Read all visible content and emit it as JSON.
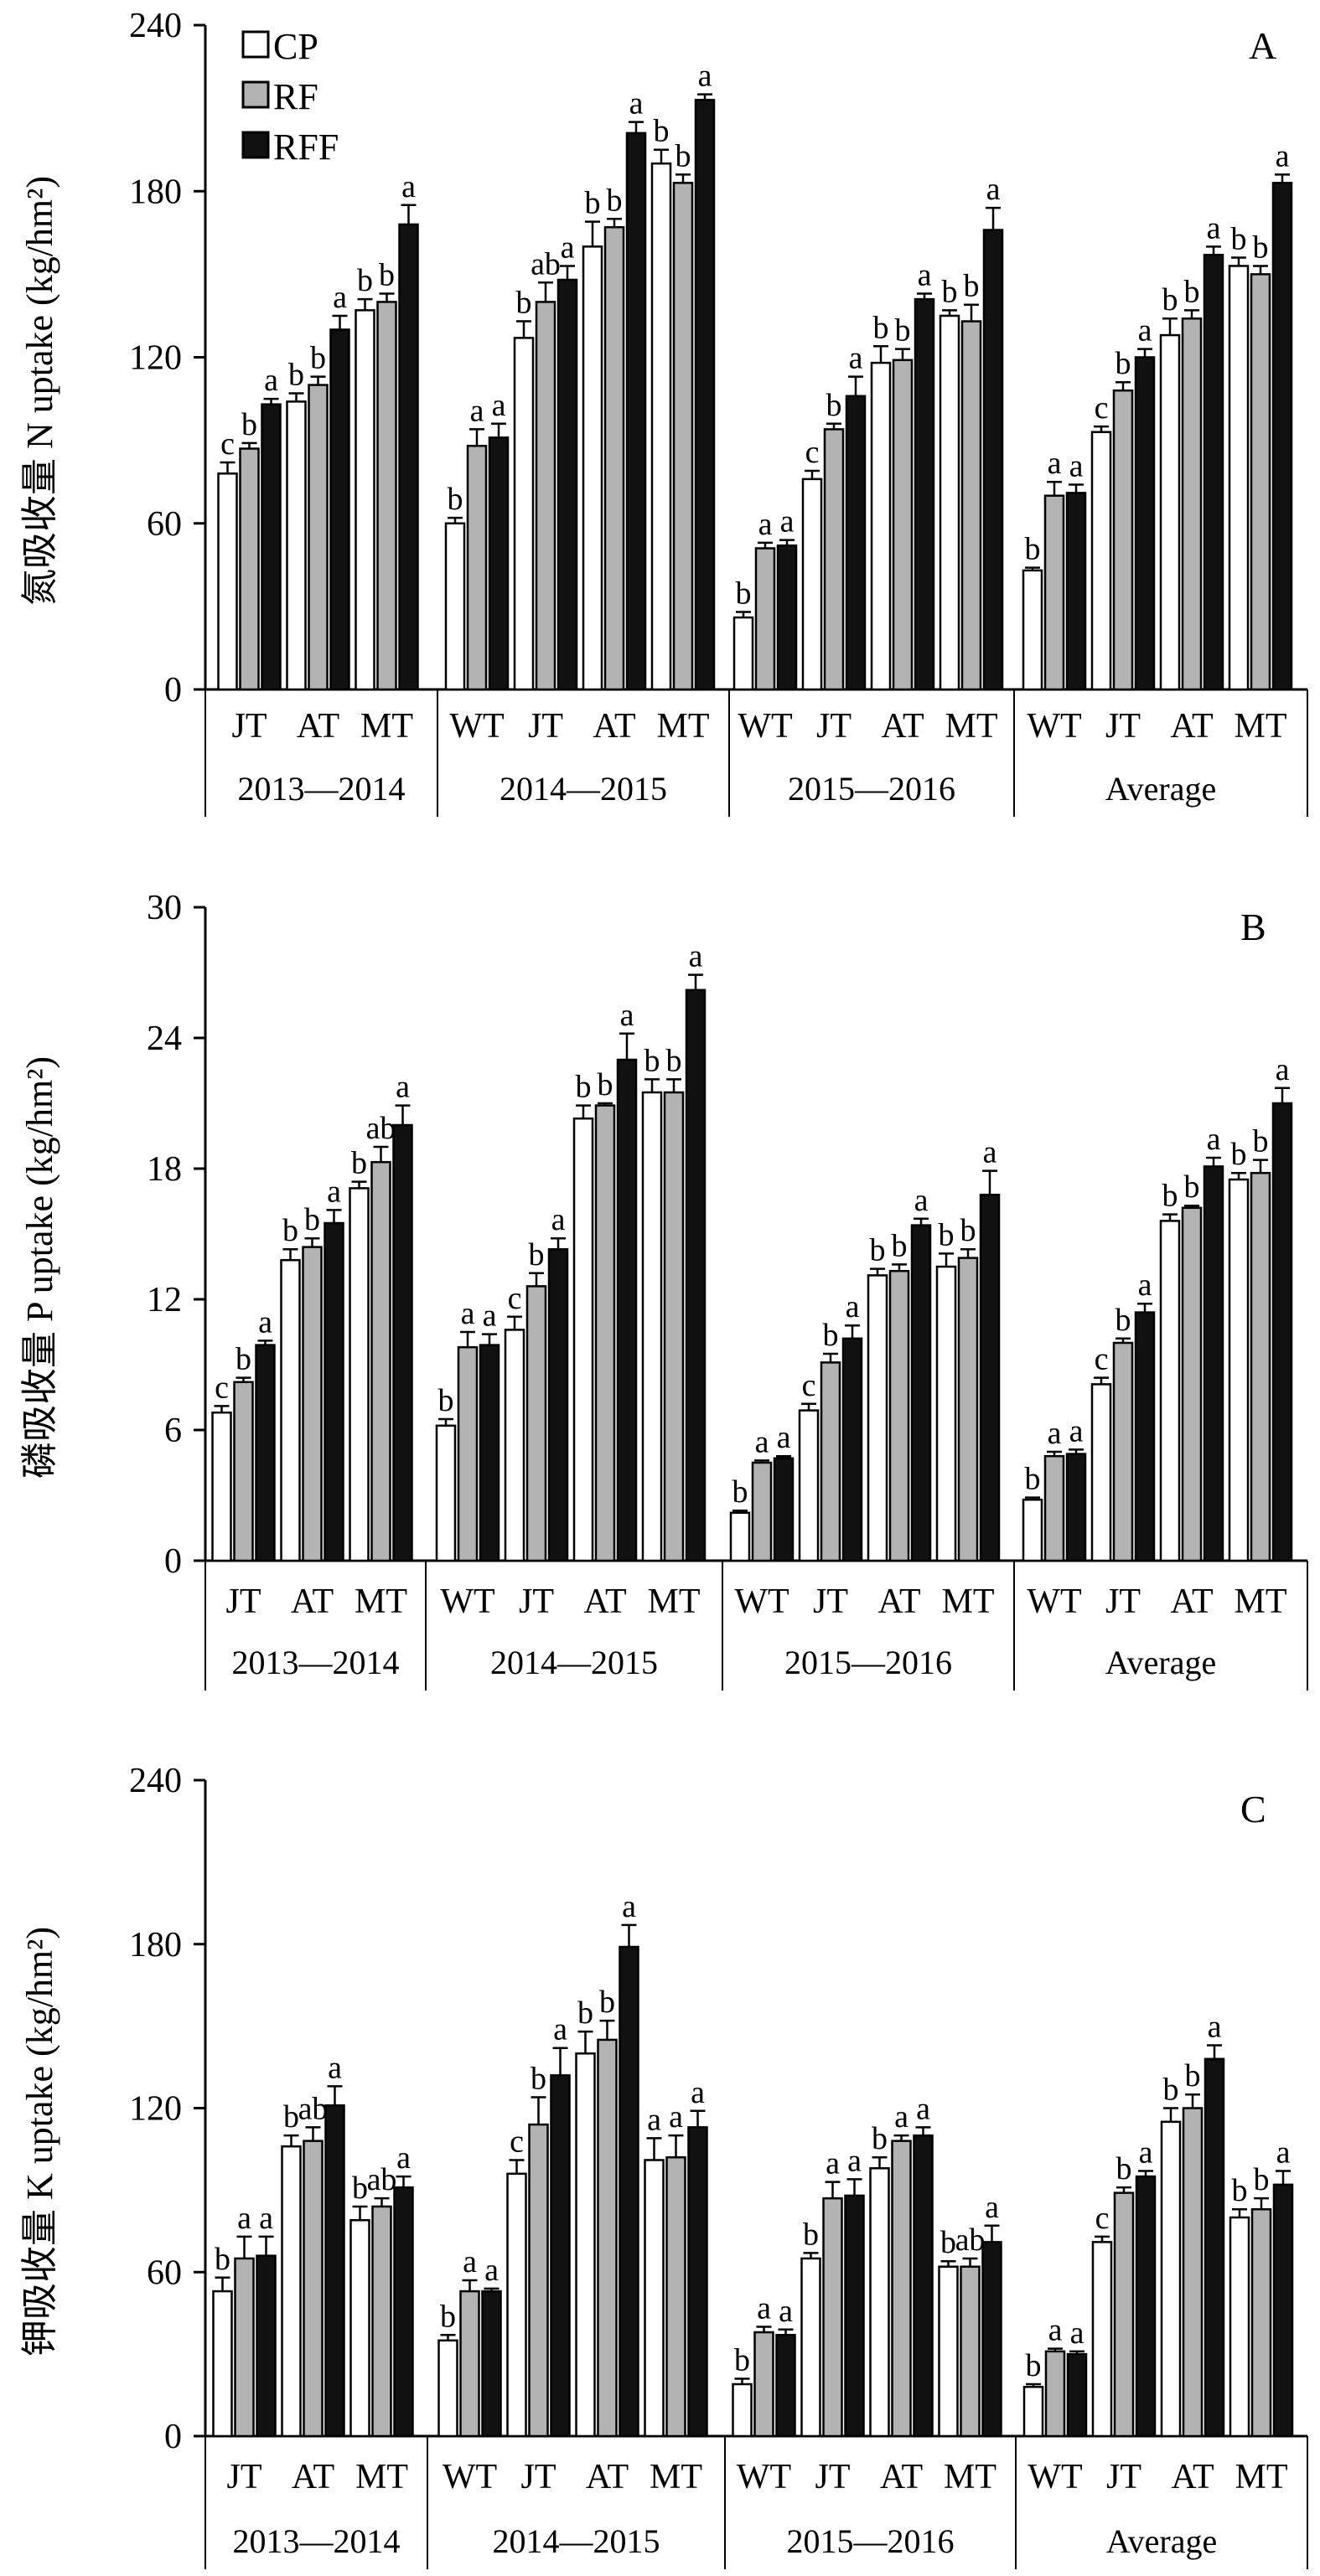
{
  "legend": [
    {
      "key": "CP",
      "label": "CP",
      "color": "#ffffff"
    },
    {
      "key": "RF",
      "label": "RF",
      "color": "#b3b3b3"
    },
    {
      "key": "RFF",
      "label": "RFF",
      "color": "#111111"
    }
  ],
  "chart_data": [
    {
      "id": "N",
      "type": "bar",
      "panel_label": "A",
      "ylabel": "氮吸收量 N uptake (kg/hm²)",
      "ylim": [
        0,
        240
      ],
      "yticks": [
        0,
        60,
        120,
        180,
        240
      ],
      "series_names": [
        "CP",
        "RF",
        "RFF"
      ],
      "groups": [
        {
          "year": "2013—2014",
          "stages": [
            {
              "label": "JT",
              "values": [
                78,
                87,
                103
              ],
              "errors": [
                4,
                2,
                2
              ],
              "letters": [
                "c",
                "b",
                "a"
              ]
            },
            {
              "label": "AT",
              "values": [
                104,
                110,
                130
              ],
              "errors": [
                3,
                3,
                5
              ],
              "letters": [
                "b",
                "b",
                "a"
              ]
            },
            {
              "label": "MT",
              "values": [
                137,
                140,
                168
              ],
              "errors": [
                4,
                3,
                7
              ],
              "letters": [
                "b",
                "b",
                "a"
              ]
            }
          ]
        },
        {
          "year": "2014—2015",
          "stages": [
            {
              "label": "WT",
              "values": [
                60,
                88,
                91
              ],
              "errors": [
                2,
                6,
                5
              ],
              "letters": [
                "b",
                "a",
                "a"
              ]
            },
            {
              "label": "JT",
              "values": [
                127,
                140,
                148
              ],
              "errors": [
                6,
                7,
                5
              ],
              "letters": [
                "b",
                "ab",
                "a"
              ]
            },
            {
              "label": "AT",
              "values": [
                160,
                167,
                201
              ],
              "errors": [
                9,
                3,
                4
              ],
              "letters": [
                "b",
                "b",
                "a"
              ]
            },
            {
              "label": "MT",
              "values": [
                190,
                183,
                213
              ],
              "errors": [
                5,
                3,
                2
              ],
              "letters": [
                "b",
                "b",
                "a"
              ]
            }
          ]
        },
        {
          "year": "2015—2016",
          "stages": [
            {
              "label": "WT",
              "values": [
                26,
                51,
                52
              ],
              "errors": [
                2,
                2,
                2
              ],
              "letters": [
                "b",
                "a",
                "a"
              ]
            },
            {
              "label": "JT",
              "values": [
                76,
                94,
                106
              ],
              "errors": [
                3,
                2,
                7
              ],
              "letters": [
                "c",
                "b",
                "a"
              ]
            },
            {
              "label": "AT",
              "values": [
                118,
                119,
                141
              ],
              "errors": [
                6,
                4,
                2
              ],
              "letters": [
                "b",
                "b",
                "a"
              ]
            },
            {
              "label": "MT",
              "values": [
                135,
                133,
                166
              ],
              "errors": [
                2,
                6,
                8
              ],
              "letters": [
                "b",
                "b",
                "a"
              ]
            }
          ]
        },
        {
          "year": "Average",
          "stages": [
            {
              "label": "WT",
              "values": [
                43,
                70,
                71
              ],
              "errors": [
                1,
                5,
                3
              ],
              "letters": [
                "b",
                "a",
                "a"
              ]
            },
            {
              "label": "JT",
              "values": [
                93,
                108,
                120
              ],
              "errors": [
                2,
                3,
                3
              ],
              "letters": [
                "c",
                "b",
                "a"
              ]
            },
            {
              "label": "AT",
              "values": [
                128,
                134,
                157
              ],
              "errors": [
                6,
                3,
                3
              ],
              "letters": [
                "b",
                "b",
                "a"
              ]
            },
            {
              "label": "MT",
              "values": [
                153,
                150,
                183
              ],
              "errors": [
                3,
                3,
                3
              ],
              "letters": [
                "b",
                "b",
                "a"
              ]
            }
          ]
        }
      ]
    },
    {
      "id": "P",
      "type": "bar",
      "panel_label": "B",
      "ylabel": "磷吸收量 P uptake (kg/hm²)",
      "ylim": [
        0,
        30
      ],
      "yticks": [
        0,
        6,
        12,
        18,
        24,
        30
      ],
      "series_names": [
        "CP",
        "RF",
        "RFF"
      ],
      "groups": [
        {
          "year": "2013—2014",
          "stages": [
            {
              "label": "JT",
              "values": [
                6.8,
                8.2,
                9.9
              ],
              "errors": [
                0.3,
                0.2,
                0.2
              ],
              "letters": [
                "c",
                "b",
                "a"
              ]
            },
            {
              "label": "AT",
              "values": [
                13.8,
                14.4,
                15.5
              ],
              "errors": [
                0.5,
                0.4,
                0.6
              ],
              "letters": [
                "b",
                "b",
                "a"
              ]
            },
            {
              "label": "MT",
              "values": [
                17.1,
                18.3,
                20.0
              ],
              "errors": [
                0.3,
                0.7,
                0.9
              ],
              "letters": [
                "b",
                "ab",
                "a"
              ]
            }
          ]
        },
        {
          "year": "2014—2015",
          "stages": [
            {
              "label": "WT",
              "values": [
                6.2,
                9.8,
                9.9
              ],
              "errors": [
                0.3,
                0.7,
                0.5
              ],
              "letters": [
                "b",
                "a",
                "a"
              ]
            },
            {
              "label": "JT",
              "values": [
                10.6,
                12.6,
                14.3
              ],
              "errors": [
                0.6,
                0.6,
                0.5
              ],
              "letters": [
                "c",
                "b",
                "a"
              ]
            },
            {
              "label": "AT",
              "values": [
                20.3,
                20.9,
                23.0
              ],
              "errors": [
                0.6,
                0.1,
                1.2
              ],
              "letters": [
                "b",
                "b",
                "a"
              ]
            },
            {
              "label": "MT",
              "values": [
                21.5,
                21.5,
                26.2
              ],
              "errors": [
                0.6,
                0.6,
                0.7
              ],
              "letters": [
                "b",
                "b",
                "a"
              ]
            }
          ]
        },
        {
          "year": "2015—2016",
          "stages": [
            {
              "label": "WT",
              "values": [
                2.2,
                4.5,
                4.7
              ],
              "errors": [
                0.1,
                0.1,
                0.1
              ],
              "letters": [
                "b",
                "a",
                "a"
              ]
            },
            {
              "label": "JT",
              "values": [
                6.9,
                9.1,
                10.2
              ],
              "errors": [
                0.3,
                0.4,
                0.6
              ],
              "letters": [
                "c",
                "b",
                "a"
              ]
            },
            {
              "label": "AT",
              "values": [
                13.1,
                13.3,
                15.4
              ],
              "errors": [
                0.3,
                0.3,
                0.3
              ],
              "letters": [
                "b",
                "b",
                "a"
              ]
            },
            {
              "label": "MT",
              "values": [
                13.5,
                13.9,
                16.8
              ],
              "errors": [
                0.6,
                0.4,
                1.1
              ],
              "letters": [
                "b",
                "b",
                "a"
              ]
            }
          ]
        },
        {
          "year": "Average",
          "stages": [
            {
              "label": "WT",
              "values": [
                2.8,
                4.8,
                4.9
              ],
              "errors": [
                0.1,
                0.2,
                0.2
              ],
              "letters": [
                "b",
                "a",
                "a"
              ]
            },
            {
              "label": "JT",
              "values": [
                8.1,
                10.0,
                11.4
              ],
              "errors": [
                0.3,
                0.2,
                0.4
              ],
              "letters": [
                "c",
                "b",
                "a"
              ]
            },
            {
              "label": "AT",
              "values": [
                15.6,
                16.2,
                18.1
              ],
              "errors": [
                0.3,
                0.1,
                0.4
              ],
              "letters": [
                "b",
                "b",
                "a"
              ]
            },
            {
              "label": "MT",
              "values": [
                17.5,
                17.8,
                21.0
              ],
              "errors": [
                0.3,
                0.6,
                0.7
              ],
              "letters": [
                "b",
                "b",
                "a"
              ]
            }
          ]
        }
      ]
    },
    {
      "id": "K",
      "type": "bar",
      "panel_label": "C",
      "ylabel": "钾吸收量 K uptake (kg/hm²)",
      "ylim": [
        0,
        240
      ],
      "yticks": [
        0,
        60,
        120,
        180,
        240
      ],
      "series_names": [
        "CP",
        "RF",
        "RFF"
      ],
      "groups": [
        {
          "year": "2013—2014",
          "stages": [
            {
              "label": "JT",
              "values": [
                53,
                65,
                66
              ],
              "errors": [
                5,
                8,
                7
              ],
              "letters": [
                "b",
                "a",
                "a"
              ]
            },
            {
              "label": "AT",
              "values": [
                106,
                108,
                121
              ],
              "errors": [
                4,
                5,
                7
              ],
              "letters": [
                "b",
                "ab",
                "a"
              ]
            },
            {
              "label": "MT",
              "values": [
                79,
                84,
                91
              ],
              "errors": [
                5,
                3,
                4
              ],
              "letters": [
                "b",
                "ab",
                "a"
              ]
            }
          ]
        },
        {
          "year": "2014—2015",
          "stages": [
            {
              "label": "WT",
              "values": [
                35,
                53,
                53
              ],
              "errors": [
                2,
                4,
                1
              ],
              "letters": [
                "b",
                "a",
                "a"
              ]
            },
            {
              "label": "JT",
              "values": [
                96,
                114,
                132
              ],
              "errors": [
                5,
                10,
                10
              ],
              "letters": [
                "c",
                "b",
                "a"
              ]
            },
            {
              "label": "AT",
              "values": [
                140,
                145,
                179
              ],
              "errors": [
                8,
                7,
                8
              ],
              "letters": [
                "b",
                "b",
                "a"
              ]
            },
            {
              "label": "MT",
              "values": [
                101,
                102,
                113
              ],
              "errors": [
                8,
                8,
                6
              ],
              "letters": [
                "a",
                "a",
                "a"
              ]
            }
          ]
        },
        {
          "year": "2015—2016",
          "stages": [
            {
              "label": "WT",
              "values": [
                19,
                38,
                37
              ],
              "errors": [
                2,
                2,
                2
              ],
              "letters": [
                "b",
                "a",
                "a"
              ]
            },
            {
              "label": "JT",
              "values": [
                65,
                87,
                88
              ],
              "errors": [
                2,
                6,
                6
              ],
              "letters": [
                "b",
                "a",
                "a"
              ]
            },
            {
              "label": "AT",
              "values": [
                98,
                108,
                110
              ],
              "errors": [
                4,
                2,
                3
              ],
              "letters": [
                "b",
                "a",
                "a"
              ]
            },
            {
              "label": "MT",
              "values": [
                62,
                62,
                71
              ],
              "errors": [
                2,
                3,
                6
              ],
              "letters": [
                "b",
                "ab",
                "a"
              ]
            }
          ]
        },
        {
          "year": "Average",
          "stages": [
            {
              "label": "WT",
              "values": [
                18,
                31,
                30
              ],
              "errors": [
                1,
                1,
                1
              ],
              "letters": [
                "b",
                "a",
                "a"
              ]
            },
            {
              "label": "JT",
              "values": [
                71,
                89,
                95
              ],
              "errors": [
                2,
                2,
                2
              ],
              "letters": [
                "c",
                "b",
                "a"
              ]
            },
            {
              "label": "AT",
              "values": [
                115,
                120,
                138
              ],
              "errors": [
                5,
                5,
                5
              ],
              "letters": [
                "b",
                "b",
                "a"
              ]
            },
            {
              "label": "MT",
              "values": [
                80,
                83,
                92
              ],
              "errors": [
                3,
                4,
                5
              ],
              "letters": [
                "b",
                "b",
                "a"
              ]
            }
          ]
        }
      ]
    }
  ]
}
